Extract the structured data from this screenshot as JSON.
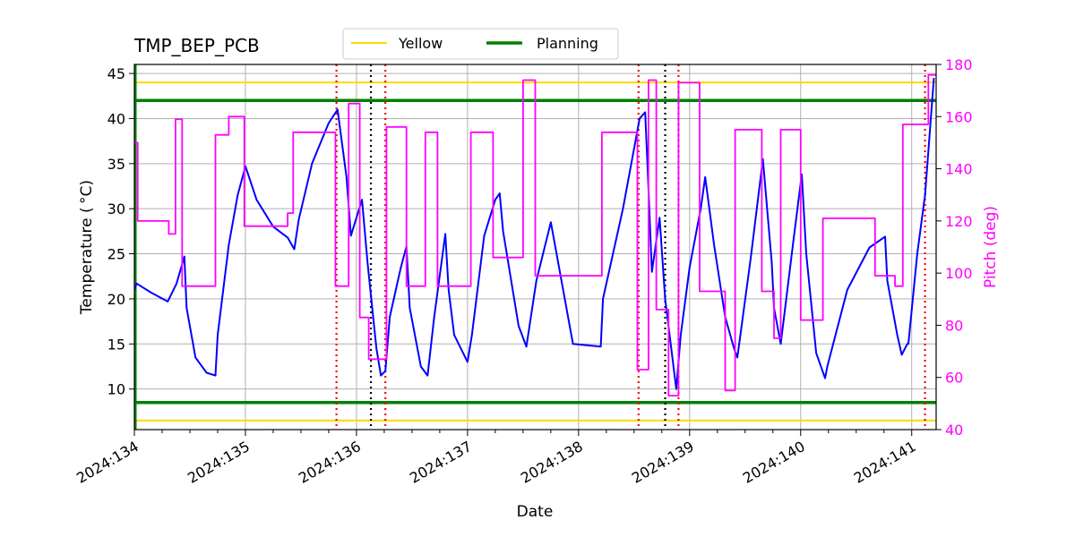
{
  "chart_data": {
    "type": "line",
    "title": "TMP_BEP_PCB",
    "xlabel": "Date",
    "ylabel": "Temperature ($^\\circ$C)",
    "ylabel_display": "Temperature ( °C)",
    "y2label": "Pitch (deg)",
    "x_tick_labels": [
      "2024:134",
      "2024:135",
      "2024:136",
      "2024:137",
      "2024:138",
      "2024:139",
      "2024:140",
      "2024:141"
    ],
    "xlim": [
      134.0,
      141.22
    ],
    "ylim": [
      5.5,
      46
    ],
    "y2lim": [
      40,
      180
    ],
    "y_ticks": [
      10,
      15,
      20,
      25,
      30,
      35,
      40,
      45
    ],
    "y2_ticks": [
      40,
      60,
      80,
      100,
      120,
      140,
      160,
      180
    ],
    "grid": true,
    "legend": {
      "placement": "top-center",
      "entries": [
        {
          "label": "Yellow",
          "color": "#ffd700"
        },
        {
          "label": "Planning",
          "color": "#008000"
        }
      ]
    },
    "limits": {
      "yellow": [
        6.5,
        44
      ],
      "planning": [
        8.5,
        42
      ]
    },
    "red_vlines": [
      135.82,
      136.26,
      138.54,
      138.9,
      141.12
    ],
    "black_vlines": [
      136.13,
      138.78
    ],
    "series": [
      {
        "name": "TMP_BEP_PCB",
        "axis": "left",
        "color": "#0000ff",
        "x": [
          134.0,
          134.02,
          134.15,
          134.3,
          134.38,
          134.45,
          134.47,
          134.55,
          134.65,
          134.73,
          134.75,
          134.85,
          134.93,
          135.0,
          135.1,
          135.25,
          135.38,
          135.44,
          135.48,
          135.6,
          135.75,
          135.83,
          135.91,
          135.95,
          136.05,
          136.1,
          136.18,
          136.22,
          136.26,
          136.3,
          136.4,
          136.45,
          136.48,
          136.58,
          136.64,
          136.7,
          136.8,
          136.83,
          136.88,
          137.0,
          137.04,
          137.15,
          137.25,
          137.29,
          137.32,
          137.46,
          137.53,
          137.62,
          137.75,
          137.95,
          138.2,
          138.22,
          138.4,
          138.55,
          138.6,
          138.62,
          138.66,
          138.73,
          138.78,
          138.88,
          138.92,
          139.0,
          139.1,
          139.14,
          139.22,
          139.32,
          139.4,
          139.43,
          139.55,
          139.66,
          139.74,
          139.76,
          139.82,
          139.93,
          140.01,
          140.05,
          140.14,
          140.22,
          140.24,
          140.42,
          140.62,
          140.76,
          140.78,
          140.87,
          140.91,
          140.96,
          140.97,
          141.05,
          141.12,
          141.2
        ],
        "y": [
          21.0,
          21.7,
          20.7,
          19.7,
          21.7,
          24.7,
          19.0,
          13.5,
          11.8,
          11.5,
          16.0,
          26.0,
          31.5,
          34.7,
          31.0,
          28.0,
          26.8,
          25.5,
          28.8,
          35.0,
          39.5,
          41.0,
          33.5,
          27.0,
          31.0,
          24.0,
          14.5,
          11.5,
          12.0,
          18.0,
          23.5,
          25.8,
          19.0,
          12.5,
          11.5,
          18.0,
          27.2,
          21.0,
          16.0,
          13.0,
          16.0,
          27.0,
          31.0,
          31.7,
          27.5,
          17.0,
          14.7,
          22.0,
          28.5,
          15.0,
          14.7,
          20.0,
          30.0,
          40.0,
          40.7,
          35.0,
          23.0,
          29.0,
          20.0,
          10.0,
          16.0,
          23.5,
          30.0,
          33.5,
          26.0,
          18.0,
          14.5,
          13.5,
          24.5,
          35.5,
          24.0,
          19.0,
          15.0,
          26.0,
          33.8,
          25.0,
          14.0,
          11.2,
          12.5,
          21.0,
          25.7,
          26.9,
          22.0,
          16.0,
          13.8,
          15.0,
          15.0,
          25.0,
          31.5,
          44.5
        ]
      },
      {
        "name": "Pitch",
        "axis": "right",
        "color": "#ff00ff",
        "x": [
          134.0,
          134.03,
          134.03,
          134.31,
          134.31,
          134.37,
          134.37,
          134.43,
          134.43,
          134.46,
          134.46,
          134.73,
          134.73,
          134.85,
          134.85,
          134.99,
          134.99,
          135.38,
          135.38,
          135.43,
          135.43,
          135.81,
          135.81,
          135.93,
          135.93,
          136.03,
          136.03,
          136.11,
          136.11,
          136.27,
          136.27,
          136.45,
          136.45,
          136.62,
          136.62,
          136.73,
          136.73,
          137.03,
          137.03,
          137.23,
          137.23,
          137.5,
          137.5,
          137.61,
          137.61,
          138.21,
          138.21,
          138.53,
          138.53,
          138.63,
          138.63,
          138.7,
          138.7,
          138.81,
          138.81,
          138.9,
          138.9,
          139.09,
          139.09,
          139.32,
          139.32,
          139.41,
          139.41,
          139.65,
          139.65,
          139.76,
          139.76,
          139.82,
          139.82,
          140.0,
          140.0,
          140.2,
          140.2,
          140.67,
          140.67,
          140.85,
          140.85,
          140.92,
          140.92,
          141.15,
          141.15,
          141.22
        ],
        "y": [
          150,
          150,
          120,
          120,
          115,
          115,
          159,
          159,
          95,
          95,
          95,
          95,
          153,
          153,
          160,
          160,
          118,
          118,
          123,
          123,
          154,
          154,
          95,
          95,
          165,
          165,
          83,
          83,
          67,
          67,
          156,
          156,
          95,
          95,
          154,
          154,
          95,
          95,
          154,
          154,
          106,
          106,
          174,
          174,
          99,
          99,
          154,
          154,
          63,
          63,
          174,
          174,
          86,
          86,
          53,
          53,
          173,
          173,
          93,
          93,
          55,
          55,
          155,
          155,
          93,
          93,
          75,
          75,
          155,
          155,
          82,
          82,
          121,
          121,
          99,
          99,
          95,
          95,
          157,
          157,
          176,
          176
        ]
      }
    ]
  }
}
